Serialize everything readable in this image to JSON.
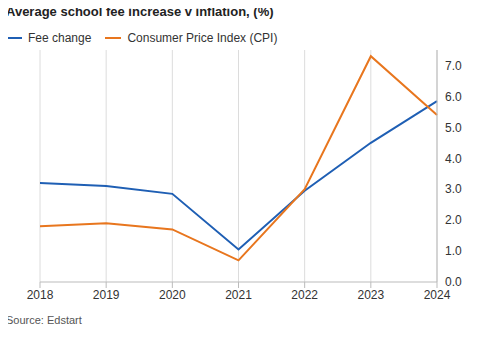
{
  "chart_data": {
    "type": "line",
    "title": "Average school fee increase v inflation, (%)",
    "source": "Source: Edstart",
    "categories": [
      "2018",
      "2019",
      "2020",
      "2021",
      "2022",
      "2023",
      "2024"
    ],
    "series": [
      {
        "name": "Fee change",
        "color": "#1f5fb4",
        "values": [
          3.2,
          3.1,
          2.85,
          1.05,
          2.95,
          4.5,
          5.85
        ]
      },
      {
        "name": "Consumer Price Index (CPI)",
        "color": "#e8761e",
        "values": [
          1.8,
          1.9,
          1.7,
          0.7,
          3.0,
          7.3,
          5.4
        ]
      }
    ],
    "ylim": [
      0,
      7.5
    ],
    "yticks": [
      {
        "value": 0,
        "label": "0.0"
      },
      {
        "value": 1,
        "label": "1.0"
      },
      {
        "value": 2,
        "label": "2.0"
      },
      {
        "value": 3,
        "label": "3.0"
      },
      {
        "value": 4,
        "label": "4.0"
      },
      {
        "value": 5,
        "label": "5.0"
      },
      {
        "value": 6,
        "label": "6.0"
      },
      {
        "value": 7,
        "label": "7.0"
      }
    ],
    "grid": true,
    "legend": "top-left"
  }
}
